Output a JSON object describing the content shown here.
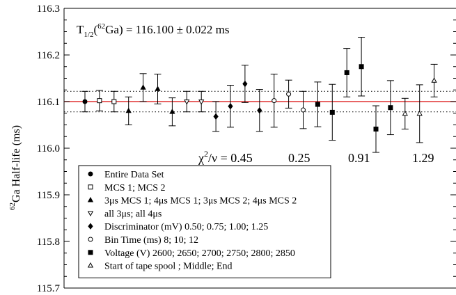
{
  "chart_data": {
    "type": "scatter",
    "ylabel_sup": "62",
    "ylabel_main": "Ga Half-life (ms)",
    "ylim": [
      115.7,
      116.3
    ],
    "yticks": [
      "115.7",
      "115.8",
      "115.9",
      "116.0",
      "116.1",
      "116.2",
      "116.3"
    ],
    "grid": false,
    "annotation": {
      "t": "T",
      "sub": "1/2",
      "open": "(",
      "sup": "62",
      "rest": "Ga) = 116.100 ± 0.022 ms"
    },
    "reference": {
      "value": 116.1,
      "uncertainty": 0.022,
      "color": "#e03030"
    },
    "chi_label": {
      "chi": "χ",
      "sup": "2",
      "rest": "/ν = "
    },
    "chi_values": [
      "0.45",
      "0.25",
      "0.91",
      "1.29"
    ],
    "legend_position": "bottom-left",
    "series": [
      {
        "name": "Entire Data Set",
        "marker": "filled-circle",
        "points": [
          {
            "x": 1,
            "y": 116.1,
            "err": 0.022
          }
        ]
      },
      {
        "name": "MCS 1; MCS 2",
        "marker": "open-square",
        "points": [
          {
            "x": 2,
            "y": 116.102,
            "err": 0.022
          },
          {
            "x": 3,
            "y": 116.1,
            "err": 0.022
          }
        ]
      },
      {
        "name": "3μs MCS 1; 4μs MCS 1; 3μs MCS 2; 4μs MCS 2",
        "marker": "filled-triangle",
        "points": [
          {
            "x": 4,
            "y": 116.08,
            "err": 0.03
          },
          {
            "x": 5,
            "y": 116.13,
            "err": 0.03
          },
          {
            "x": 6,
            "y": 116.127,
            "err": 0.032
          },
          {
            "x": 7,
            "y": 116.078,
            "err": 0.03
          }
        ]
      },
      {
        "name": "all 3μs; all 4μs",
        "marker": "open-triangle-down",
        "points": [
          {
            "x": 8,
            "y": 116.1,
            "err": 0.022
          },
          {
            "x": 9,
            "y": 116.1,
            "err": 0.022
          }
        ]
      },
      {
        "name": "Discriminator (mV) 0.50; 0.75; 1.00; 1.25",
        "marker": "filled-diamond",
        "points": [
          {
            "x": 10,
            "y": 116.068,
            "err": 0.032
          },
          {
            "x": 11,
            "y": 116.09,
            "err": 0.045
          },
          {
            "x": 12,
            "y": 116.138,
            "err": 0.04
          },
          {
            "x": 13,
            "y": 116.081,
            "err": 0.045
          }
        ]
      },
      {
        "name": "Bin Time (ms) 8; 10; 12",
        "marker": "open-circle",
        "points": [
          {
            "x": 14,
            "y": 116.102,
            "err": 0.057
          },
          {
            "x": 15,
            "y": 116.116,
            "err": 0.03
          },
          {
            "x": 16,
            "y": 116.082,
            "err": 0.04
          }
        ]
      },
      {
        "name": "Voltage (V) 2600; 2650; 2700; 2750; 2800; 2850",
        "marker": "filled-square",
        "points": [
          {
            "x": 17,
            "y": 116.094,
            "err": 0.048
          },
          {
            "x": 18,
            "y": 116.077,
            "err": 0.06
          },
          {
            "x": 19,
            "y": 116.162,
            "err": 0.052
          },
          {
            "x": 20,
            "y": 116.175,
            "err": 0.063
          },
          {
            "x": 21,
            "y": 116.041,
            "err": 0.05
          },
          {
            "x": 22,
            "y": 116.087,
            "err": 0.058
          }
        ]
      },
      {
        "name": "Start of tape spool ; Middle; End",
        "marker": "open-triangle",
        "points": [
          {
            "x": 23,
            "y": 116.074,
            "err": 0.033
          },
          {
            "x": 24,
            "y": 116.074,
            "err": 0.062
          },
          {
            "x": 25,
            "y": 116.145,
            "err": 0.035
          }
        ]
      }
    ]
  }
}
